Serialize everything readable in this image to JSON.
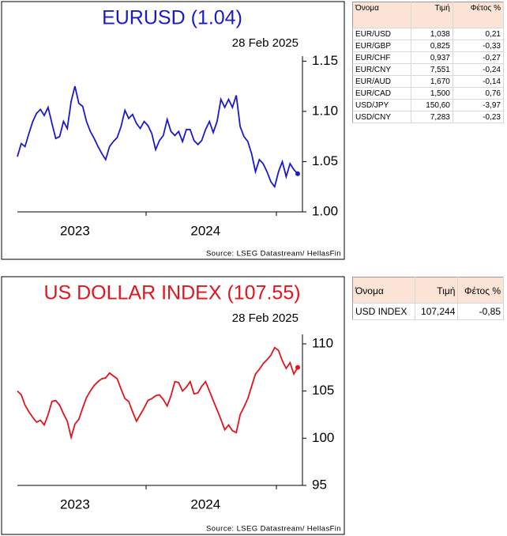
{
  "chart_data": [
    {
      "type": "line",
      "title": "EURUSD (1.04)",
      "subtitle": "28 Feb 2025",
      "source": "Source: LSEG Datastream/ HellasFin",
      "color": "#1a1acd",
      "categories": [
        null,
        null,
        null,
        null,
        null,
        null,
        null,
        null,
        null,
        null,
        null,
        null,
        null,
        null,
        null,
        "2023",
        null,
        null,
        null,
        null,
        null,
        null,
        null,
        null,
        null,
        null,
        null,
        null,
        null,
        null,
        null,
        null,
        null,
        null,
        null,
        null,
        null,
        null,
        null,
        null,
        null,
        null,
        null,
        null,
        null,
        null,
        null,
        null,
        null,
        "2024",
        null,
        null,
        null,
        null,
        null,
        null,
        null,
        null,
        null,
        null,
        null,
        null,
        null,
        null,
        null,
        null,
        null,
        null,
        null,
        null,
        null,
        null,
        null,
        null
      ],
      "values": [
        1.055,
        1.068,
        1.065,
        1.078,
        1.09,
        1.098,
        1.102,
        1.096,
        1.104,
        1.088,
        1.073,
        1.075,
        1.09,
        1.083,
        1.11,
        1.125,
        1.108,
        1.105,
        1.09,
        1.08,
        1.073,
        1.065,
        1.058,
        1.052,
        1.065,
        1.07,
        1.074,
        1.085,
        1.101,
        1.093,
        1.097,
        1.088,
        1.083,
        1.09,
        1.086,
        1.078,
        1.062,
        1.071,
        1.076,
        1.092,
        1.08,
        1.076,
        1.08,
        1.07,
        1.082,
        1.082,
        1.071,
        1.067,
        1.071,
        1.082,
        1.09,
        1.079,
        1.09,
        1.112,
        1.104,
        1.112,
        1.104,
        1.116,
        1.085,
        1.075,
        1.07,
        1.058,
        1.04,
        1.052,
        1.048,
        1.04,
        1.03,
        1.025,
        1.04,
        1.05,
        1.035,
        1.048,
        1.042,
        1.038
      ],
      "ylim": [
        1.0,
        1.155
      ],
      "yticks": [
        {
          "value": 1.0,
          "label": "1.00"
        },
        1.05,
        {
          "value": 1.1,
          "label": "1.10"
        },
        1.15
      ]
    },
    {
      "type": "line",
      "title": "US DOLLAR INDEX (107.55)",
      "subtitle": "28 Feb 2025",
      "source": "Source: LSEG Datastream/ HellasFin",
      "color": "#e3141c",
      "categories": [
        null,
        null,
        null,
        null,
        null,
        null,
        null,
        null,
        null,
        null,
        null,
        null,
        null,
        null,
        null,
        "2023",
        null,
        null,
        null,
        null,
        null,
        null,
        null,
        null,
        null,
        null,
        null,
        null,
        null,
        null,
        null,
        null,
        null,
        null,
        null,
        null,
        null,
        null,
        null,
        null,
        null,
        null,
        null,
        null,
        null,
        null,
        null,
        null,
        null,
        "2024",
        null,
        null,
        null,
        null,
        null,
        null,
        null,
        null,
        null,
        null,
        null,
        null,
        null,
        null,
        null,
        null,
        null,
        null,
        null,
        null,
        null,
        null,
        null,
        null
      ],
      "values": [
        105.0,
        104.6,
        103.5,
        102.8,
        102.2,
        101.7,
        101.9,
        101.4,
        102.5,
        103.9,
        104.0,
        103.5,
        102.6,
        101.8,
        100.1,
        101.5,
        102.0,
        103.2,
        104.3,
        105.0,
        105.6,
        106.0,
        106.3,
        106.4,
        106.9,
        106.6,
        106.3,
        105.2,
        104.2,
        103.9,
        102.8,
        101.8,
        102.5,
        103.2,
        104.0,
        104.2,
        104.5,
        104.6,
        104.1,
        103.4,
        104.5,
        106.0,
        105.9,
        105.0,
        105.4,
        106.0,
        104.7,
        104.8,
        105.5,
        106.0,
        105.0,
        104.0,
        103.0,
        102.0,
        100.9,
        101.4,
        100.8,
        100.6,
        102.5,
        103.3,
        104.2,
        105.5,
        106.8,
        107.3,
        107.9,
        108.3,
        108.8,
        109.6,
        109.3,
        108.2,
        107.4,
        108.0,
        106.8,
        107.5
      ],
      "ylim": [
        95,
        111
      ],
      "yticks": [
        95,
        100,
        105,
        110
      ]
    }
  ],
  "tables": [
    {
      "header": [
        "Όνομα",
        "Τιμή",
        "Φέτος %"
      ],
      "rows": [
        [
          "EUR/USD",
          "1,038",
          "0,21"
        ],
        [
          "EUR/GBP",
          "0,825",
          "-0,33"
        ],
        [
          "EUR/CHF",
          "0,937",
          "-0,27"
        ],
        [
          "EUR/CNY",
          "7,551",
          "-0,24"
        ],
        [
          "EUR/AUD",
          "1,670",
          "-0,14"
        ],
        [
          "EUR/CAD",
          "1,500",
          "0,76"
        ],
        [
          "USD/JPY",
          "150,60",
          "-3,97"
        ],
        [
          "USD/CNY",
          "7,283",
          "-0,23"
        ]
      ]
    },
    {
      "header": [
        "Όνομα",
        "Τιμή",
        "Φέτος %"
      ],
      "rows": [
        [
          "USD INDEX",
          "107,244",
          "-0,85"
        ]
      ]
    }
  ]
}
